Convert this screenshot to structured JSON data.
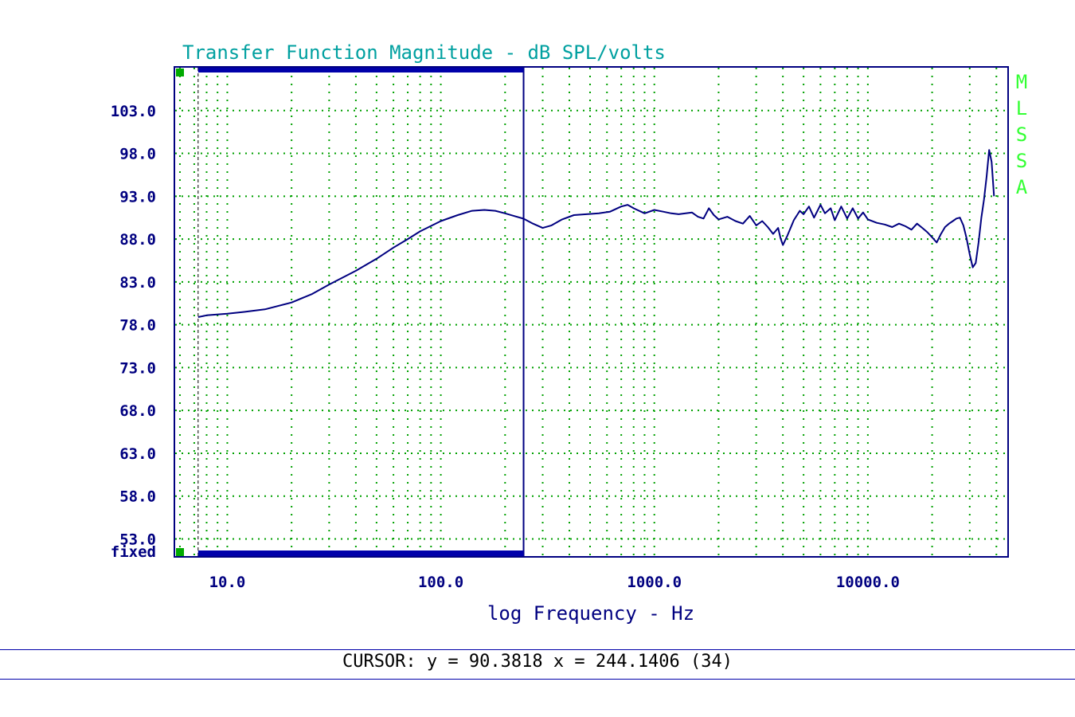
{
  "colors": {
    "title": "#00a0a0",
    "axis_text": "#000080",
    "frame": "#000080",
    "grid": "#00a000",
    "trace": "#000080",
    "marker": "#00aa00",
    "side_label": "#33ff33",
    "gate_bar": "#0000aa"
  },
  "chart_data": {
    "type": "line",
    "title": "Transfer Function Magnitude - dB SPL/volts",
    "xlabel": "log Frequency - Hz",
    "ylabel": "",
    "x_scale": "log",
    "xlim": [
      5.7,
      45000
    ],
    "ylim": [
      51.0,
      108.0
    ],
    "x_ticks": [
      10,
      100,
      1000,
      10000
    ],
    "x_tick_labels": [
      "10.0",
      "100.0",
      "1000.0",
      "10000.0"
    ],
    "y_ticks": [
      103,
      98,
      93,
      88,
      83,
      78,
      73,
      68,
      63,
      58,
      53
    ],
    "y_tick_labels": [
      "103.0",
      "98.0",
      "93.0",
      "88.0",
      "83.0",
      "78.0",
      "73.0",
      "68.0",
      "63.0",
      "58.0",
      "53.0"
    ],
    "y_bottom_label": "fixed",
    "grid": true,
    "side_label": "MLSSA",
    "gate": {
      "start_hz": 7.3,
      "end_hz": 244.1406
    },
    "series": [
      {
        "x": [
          7.3,
          8,
          10,
          12,
          15,
          20,
          25,
          30,
          40,
          50,
          60,
          70,
          80,
          100,
          120,
          140,
          160,
          180,
          200,
          220,
          244,
          270,
          300,
          330,
          370,
          420,
          480,
          550,
          620,
          700,
          750,
          800,
          900,
          1000,
          1100,
          1200,
          1300,
          1500,
          1600,
          1700,
          1800,
          1900,
          2000,
          2200,
          2400,
          2600,
          2800,
          3000,
          3200,
          3400,
          3600,
          3800,
          3900,
          4000,
          4200,
          4500,
          4800,
          5000,
          5300,
          5600,
          6000,
          6300,
          6700,
          7000,
          7500,
          8000,
          8500,
          9000,
          9500,
          10000,
          11000,
          12000,
          13000,
          14000,
          15000,
          16000,
          17000,
          18000,
          19000,
          20000,
          21000,
          22000,
          23000,
          24000,
          25000,
          26000,
          27000,
          28000,
          29000,
          30000,
          31000,
          32000,
          33000,
          34000,
          35000,
          36000,
          37000,
          38000,
          39000
        ],
        "values": [
          78.9,
          79.1,
          79.3,
          79.5,
          79.8,
          80.6,
          81.6,
          82.7,
          84.3,
          85.7,
          87.0,
          88.0,
          88.9,
          90.1,
          90.8,
          91.3,
          91.4,
          91.3,
          91.0,
          90.7,
          90.38,
          89.8,
          89.3,
          89.6,
          90.3,
          90.8,
          90.9,
          91.0,
          91.2,
          91.8,
          92.0,
          91.6,
          91.0,
          91.4,
          91.2,
          91.0,
          90.9,
          91.1,
          90.6,
          90.4,
          91.6,
          90.8,
          90.3,
          90.6,
          90.1,
          89.8,
          90.7,
          89.6,
          90.1,
          89.4,
          88.6,
          89.3,
          88.1,
          87.3,
          88.4,
          90.2,
          91.3,
          90.9,
          91.8,
          90.5,
          92.0,
          91.0,
          91.6,
          90.2,
          91.8,
          90.4,
          91.6,
          90.4,
          91.1,
          90.3,
          89.9,
          89.7,
          89.4,
          89.8,
          89.5,
          89.1,
          89.8,
          89.3,
          88.8,
          88.2,
          87.6,
          88.6,
          89.4,
          89.8,
          90.1,
          90.4,
          90.5,
          89.6,
          88.1,
          86.2,
          84.7,
          85.2,
          87.6,
          90.5,
          92.6,
          95.3,
          98.4,
          97.0,
          93.0
        ]
      }
    ]
  },
  "status": {
    "cursor_text": "CURSOR: y = 90.3818 x = 244.1406 (34)"
  }
}
